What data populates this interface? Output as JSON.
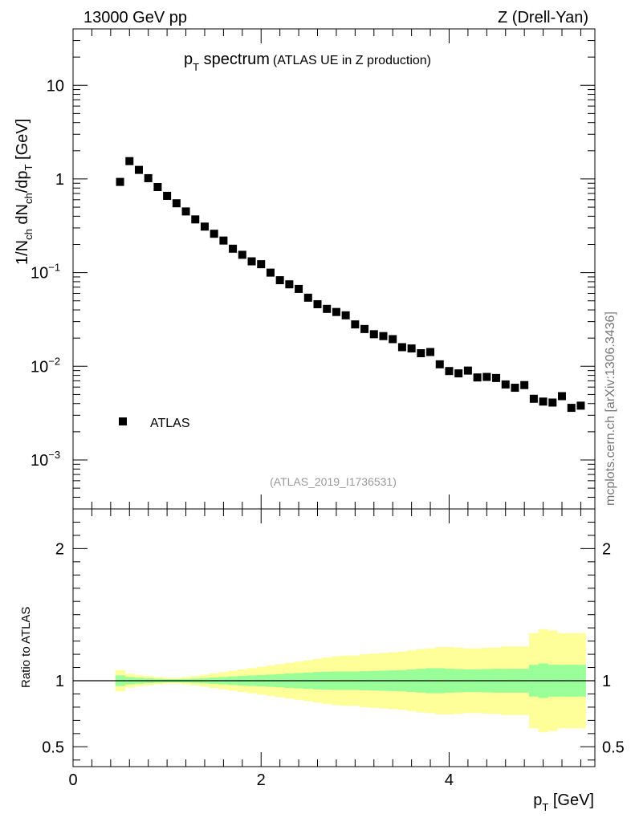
{
  "header": {
    "left": "13000 GeV pp",
    "right": "Z (Drell-Yan)"
  },
  "title": {
    "main_p": "p",
    "main_sub": "T",
    "main_rest": " spectrum",
    "small": "(ATLAS UE in Z production)"
  },
  "analysis_id": "(ATLAS_2019_I1736531)",
  "side_label": "mcplots.cern.ch [arXiv:1306.3436]",
  "legend": {
    "label": "ATLAS"
  },
  "colors": {
    "marker": "#000000",
    "band_inner": "#99ff99",
    "band_outer": "#ffff99",
    "axis": "#000000",
    "id_text": "#999999",
    "side_text": "#777777"
  },
  "chart_data": [
    {
      "type": "scatter",
      "panel": "main",
      "xlabel": "p_T [GeV]",
      "ylabel": "1/N_ch dN_ch/dp_T [GeV]",
      "xlim": [
        0,
        5.55
      ],
      "ylim": [
        0.0003,
        40
      ],
      "yscale": "log",
      "yticks": [
        {
          "value": 10,
          "base": "10",
          "exp": ""
        },
        {
          "value": 1,
          "base": "1",
          "exp": ""
        },
        {
          "value": 0.1,
          "base": "10",
          "exp": "−1"
        },
        {
          "value": 0.01,
          "base": "10",
          "exp": "−2"
        },
        {
          "value": 0.001,
          "base": "10",
          "exp": "−3"
        }
      ],
      "series": [
        {
          "name": "ATLAS",
          "x": [
            0.5,
            0.6,
            0.7,
            0.8,
            0.9,
            1.0,
            1.1,
            1.2,
            1.3,
            1.4,
            1.5,
            1.6,
            1.7,
            1.8,
            1.9,
            2.0,
            2.1,
            2.2,
            2.3,
            2.4,
            2.5,
            2.6,
            2.7,
            2.8,
            2.9,
            3.0,
            3.1,
            3.2,
            3.3,
            3.4,
            3.5,
            3.6,
            3.7,
            3.8,
            3.9,
            4.0,
            4.1,
            4.2,
            4.3,
            4.4,
            4.5,
            4.6,
            4.7,
            4.8,
            4.9,
            5.0,
            5.1,
            5.2,
            5.3,
            5.4
          ],
          "y": [
            0.93,
            1.55,
            1.25,
            1.02,
            0.82,
            0.66,
            0.55,
            0.45,
            0.37,
            0.31,
            0.26,
            0.22,
            0.18,
            0.155,
            0.132,
            0.123,
            0.1,
            0.083,
            0.075,
            0.067,
            0.054,
            0.046,
            0.041,
            0.038,
            0.035,
            0.028,
            0.025,
            0.022,
            0.021,
            0.0195,
            0.016,
            0.0155,
            0.0138,
            0.0142,
            0.0105,
            0.0089,
            0.0084,
            0.009,
            0.0076,
            0.0077,
            0.0075,
            0.0064,
            0.0059,
            0.0063,
            0.0045,
            0.0042,
            0.0041,
            0.0048,
            0.0036,
            0.0038
          ]
        }
      ]
    },
    {
      "type": "area",
      "panel": "ratio",
      "xlabel": "p_T [GeV]",
      "ylabel": "Ratio to ATLAS",
      "xlim": [
        0,
        5.55
      ],
      "ylim": [
        0.35,
        2.3
      ],
      "yticks": [
        0.5,
        1,
        2
      ],
      "xticks": [
        0,
        2,
        4
      ],
      "bin_width": 0.1,
      "x": [
        0.5,
        0.6,
        0.7,
        0.8,
        0.9,
        1.0,
        1.1,
        1.2,
        1.3,
        1.4,
        1.5,
        1.6,
        1.7,
        1.8,
        1.9,
        2.0,
        2.1,
        2.2,
        2.3,
        2.4,
        2.5,
        2.6,
        2.7,
        2.8,
        2.9,
        3.0,
        3.1,
        3.2,
        3.3,
        3.4,
        3.5,
        3.6,
        3.7,
        3.8,
        3.9,
        4.0,
        4.1,
        4.2,
        4.3,
        4.4,
        4.5,
        4.6,
        4.7,
        4.8,
        4.9,
        5.0,
        5.1,
        5.2,
        5.3,
        5.4
      ],
      "reference_line": 1,
      "band_inner": [
        0.04,
        0.028,
        0.022,
        0.018,
        0.015,
        0.012,
        0.012,
        0.014,
        0.017,
        0.02,
        0.024,
        0.028,
        0.032,
        0.036,
        0.04,
        0.043,
        0.046,
        0.05,
        0.054,
        0.058,
        0.062,
        0.066,
        0.068,
        0.07,
        0.07,
        0.07,
        0.072,
        0.074,
        0.076,
        0.078,
        0.08,
        0.085,
        0.09,
        0.095,
        0.095,
        0.09,
        0.088,
        0.086,
        0.086,
        0.088,
        0.09,
        0.09,
        0.09,
        0.09,
        0.12,
        0.13,
        0.12,
        0.12,
        0.12,
        0.12
      ],
      "band_outer": [
        0.08,
        0.052,
        0.042,
        0.035,
        0.028,
        0.022,
        0.022,
        0.028,
        0.036,
        0.045,
        0.055,
        0.065,
        0.075,
        0.085,
        0.095,
        0.105,
        0.115,
        0.125,
        0.135,
        0.145,
        0.155,
        0.165,
        0.175,
        0.185,
        0.19,
        0.19,
        0.2,
        0.205,
        0.21,
        0.215,
        0.22,
        0.23,
        0.24,
        0.245,
        0.255,
        0.255,
        0.25,
        0.245,
        0.245,
        0.25,
        0.25,
        0.26,
        0.26,
        0.26,
        0.36,
        0.39,
        0.38,
        0.36,
        0.36,
        0.36
      ]
    }
  ]
}
